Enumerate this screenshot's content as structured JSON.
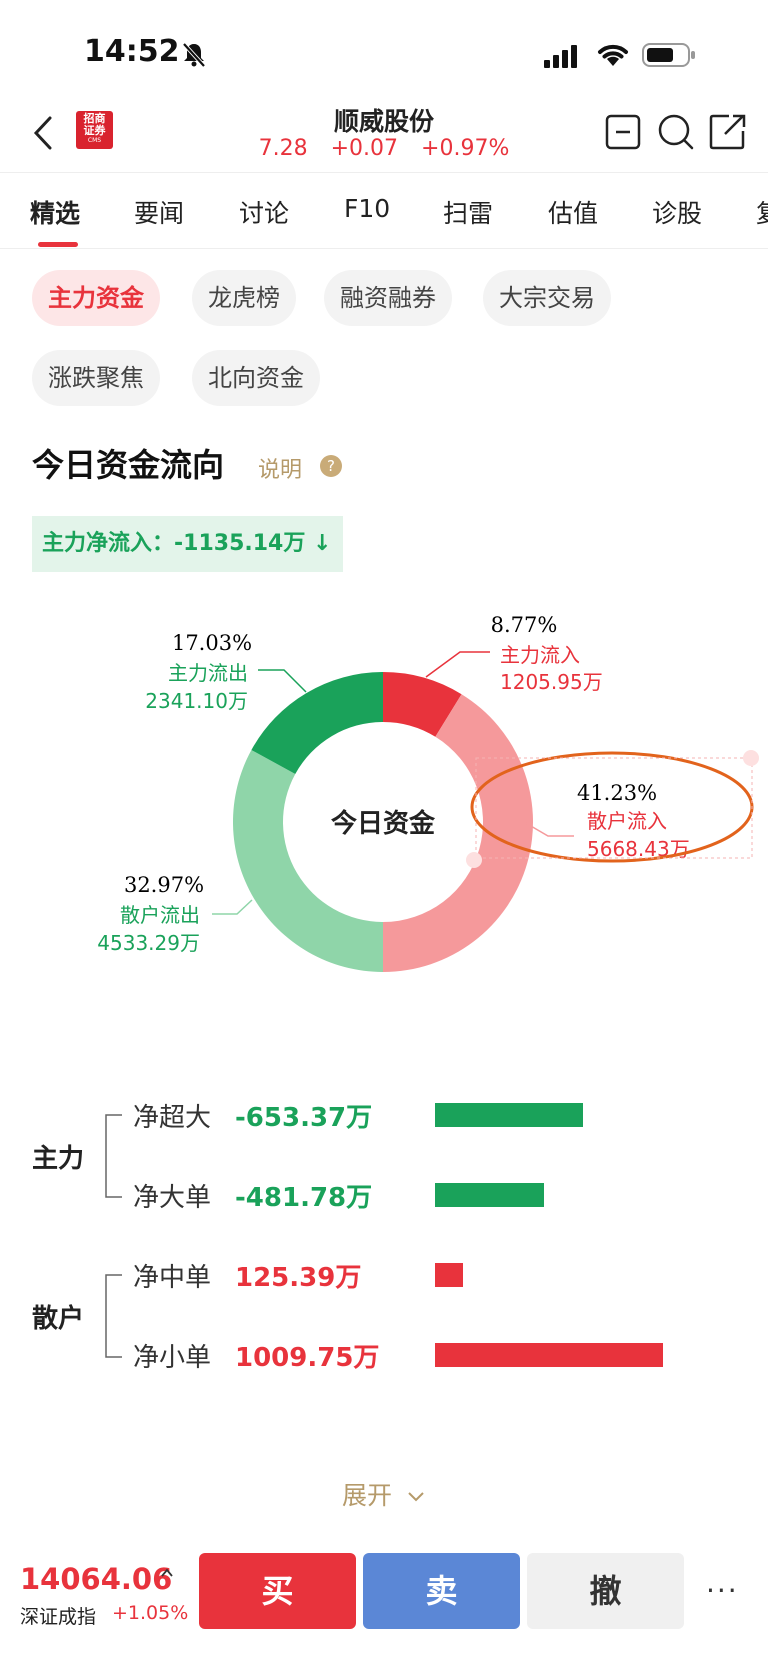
{
  "status_bar": {
    "time": "14:52"
  },
  "header": {
    "title": "顺威股份",
    "price": "7.28",
    "change": "+0.07",
    "change_pct": "+0.97%",
    "broker_logo_text": "招商证券",
    "broker_logo_sub": "CMS"
  },
  "tabs": [
    "精选",
    "要闻",
    "讨论",
    "F10",
    "扫雷",
    "估值",
    "诊股",
    "复"
  ],
  "chips": [
    "主力资金",
    "龙虎榜",
    "融资融券",
    "大宗交易",
    "涨跌聚焦",
    "北向资金"
  ],
  "section": {
    "title": "今日资金流向",
    "explain": "说明",
    "net_inflow_label": "主力净流入：",
    "net_inflow_value": "-1135.14万",
    "net_arrow": "↓"
  },
  "chart_data": {
    "type": "pie",
    "center_label": "今日资金",
    "slices": [
      {
        "name": "主力流入",
        "pct": 8.77,
        "pct_label": "8.77%",
        "amount": "1205.95万",
        "color": "#e8333c"
      },
      {
        "name": "散户流入",
        "pct": 41.23,
        "pct_label": "41.23%",
        "amount": "5668.43万",
        "color": "#f5999b"
      },
      {
        "name": "散户流出",
        "pct": 32.97,
        "pct_label": "32.97%",
        "amount": "4533.29万",
        "color": "#8fd5a9"
      },
      {
        "name": "主力流出",
        "pct": 17.03,
        "pct_label": "17.03%",
        "amount": "2341.10万",
        "color": "#1aa25a"
      }
    ]
  },
  "flows": {
    "groups": [
      {
        "label": "主力",
        "rows": [
          {
            "label": "净超大",
            "value": "-653.37万",
            "amount": -653.37,
            "color": "#1aa25a"
          },
          {
            "label": "净大单",
            "value": "-481.78万",
            "amount": -481.78,
            "color": "#1aa25a"
          }
        ]
      },
      {
        "label": "散户",
        "rows": [
          {
            "label": "净中单",
            "value": "125.39万",
            "amount": 125.39,
            "color": "#e8333c"
          },
          {
            "label": "净小单",
            "value": "1009.75万",
            "amount": 1009.75,
            "color": "#e8333c"
          }
        ]
      }
    ]
  },
  "expand_label": "展开",
  "footer": {
    "index_value": "14064.06",
    "index_name": "深证成指",
    "index_pct": "+1.05%",
    "buy": "买",
    "sell": "卖",
    "cancel": "撤",
    "more": "···"
  }
}
